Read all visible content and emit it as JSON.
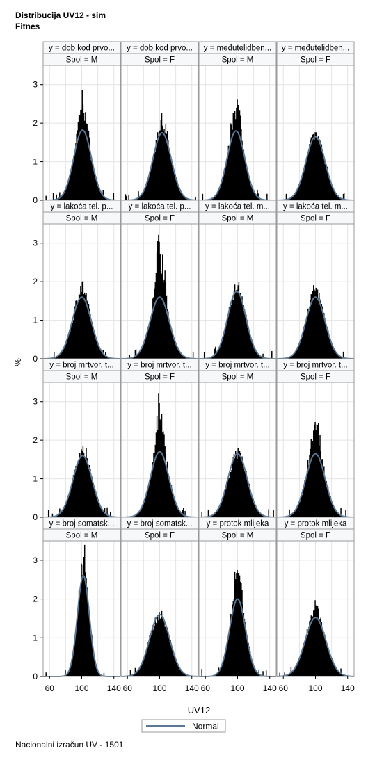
{
  "title": "Distribucija UV12 - sim",
  "subtitle": "Fitnes",
  "footnote": "Nacionalni izračun UV - 1501",
  "chart_data": {
    "type": "bar",
    "subtype": "histogram panel grid with normal density overlay",
    "xlabel": "UV12",
    "ylabel": "%",
    "xlim": [
      52,
      148
    ],
    "ylim": [
      0,
      3.5
    ],
    "xticks": [
      "60",
      "100",
      "140"
    ],
    "yticks": [
      "0",
      "1",
      "2",
      "3"
    ],
    "grid": true,
    "legend": {
      "position": "bottom-center",
      "entries": [
        "Normal"
      ]
    },
    "colors": {
      "bars": "#000000",
      "normal_curve": "#5a7896",
      "header_bg": "#f7f8fa",
      "grid": "#e4e4e4",
      "frame": "#9a9a9a"
    },
    "panels": [
      {
        "row": 0,
        "col": 0,
        "y_label": "y = dob kod prvo...",
        "spol_label": "Spol = M",
        "mean": 101,
        "sd": 11.0,
        "normal_peak": 1.82,
        "hist_peak": 2.8
      },
      {
        "row": 0,
        "col": 1,
        "y_label": "y = dob kod prvo...",
        "spol_label": "Spol = F",
        "mean": 103,
        "sd": 11.5,
        "normal_peak": 1.75,
        "hist_peak": 2.2
      },
      {
        "row": 0,
        "col": 2,
        "y_label": "y = međutelidben...",
        "spol_label": "Spol = M",
        "mean": 98,
        "sd": 11.0,
        "normal_peak": 1.8,
        "hist_peak": 2.8
      },
      {
        "row": 0,
        "col": 3,
        "y_label": "y = međutelidben...",
        "spol_label": "Spol = F",
        "mean": 100,
        "sd": 12.0,
        "normal_peak": 1.65,
        "hist_peak": 1.72
      },
      {
        "row": 1,
        "col": 0,
        "y_label": "y = lakoća tel. p...",
        "spol_label": "Spol = M",
        "mean": 100,
        "sd": 12.0,
        "normal_peak": 1.6,
        "hist_peak": 2.0
      },
      {
        "row": 1,
        "col": 1,
        "y_label": "y = lakoća tel. p...",
        "spol_label": "Spol = F",
        "mean": 100,
        "sd": 12.0,
        "normal_peak": 1.6,
        "hist_peak": 3.35
      },
      {
        "row": 1,
        "col": 2,
        "y_label": "y = lakoća tel. m...",
        "spol_label": "Spol = M",
        "mean": 99,
        "sd": 11.5,
        "normal_peak": 1.75,
        "hist_peak": 2.0
      },
      {
        "row": 1,
        "col": 3,
        "y_label": "y = lakoća tel. m...",
        "spol_label": "Spol = F",
        "mean": 100,
        "sd": 12.0,
        "normal_peak": 1.6,
        "hist_peak": 1.9
      },
      {
        "row": 2,
        "col": 0,
        "y_label": "y = broj mrtvor. t...",
        "spol_label": "Spol = M",
        "mean": 101,
        "sd": 12.0,
        "normal_peak": 1.6,
        "hist_peak": 1.85
      },
      {
        "row": 2,
        "col": 1,
        "y_label": "y = broj mrtvor. t...",
        "spol_label": "Spol = F",
        "mean": 100,
        "sd": 11.5,
        "normal_peak": 1.7,
        "hist_peak": 3.15
      },
      {
        "row": 2,
        "col": 2,
        "y_label": "y = broj mrtvor. t...",
        "spol_label": "Spol = M",
        "mean": 100,
        "sd": 12.0,
        "normal_peak": 1.65,
        "hist_peak": 1.68
      },
      {
        "row": 2,
        "col": 3,
        "y_label": "y = broj mrtvor. t...",
        "spol_label": "Spol = F",
        "mean": 100,
        "sd": 12.0,
        "normal_peak": 1.65,
        "hist_peak": 2.75
      },
      {
        "row": 3,
        "col": 0,
        "y_label": "y = broj somatsk...",
        "spol_label": "Spol = M",
        "mean": 102,
        "sd": 7.5,
        "normal_peak": 2.6,
        "hist_peak": 3.4
      },
      {
        "row": 3,
        "col": 1,
        "y_label": "y = broj somatsk...",
        "spol_label": "Spol = F",
        "mean": 100,
        "sd": 12.5,
        "normal_peak": 1.6,
        "hist_peak": 1.6
      },
      {
        "row": 3,
        "col": 2,
        "y_label": "y = protok mlijeka",
        "spol_label": "Spol = M",
        "mean": 100,
        "sd": 10.0,
        "normal_peak": 2.0,
        "hist_peak": 3.0
      },
      {
        "row": 3,
        "col": 3,
        "y_label": "y = protok mlijeka",
        "spol_label": "Spol = F",
        "mean": 100,
        "sd": 13.0,
        "normal_peak": 1.52,
        "hist_peak": 1.95
      }
    ]
  }
}
